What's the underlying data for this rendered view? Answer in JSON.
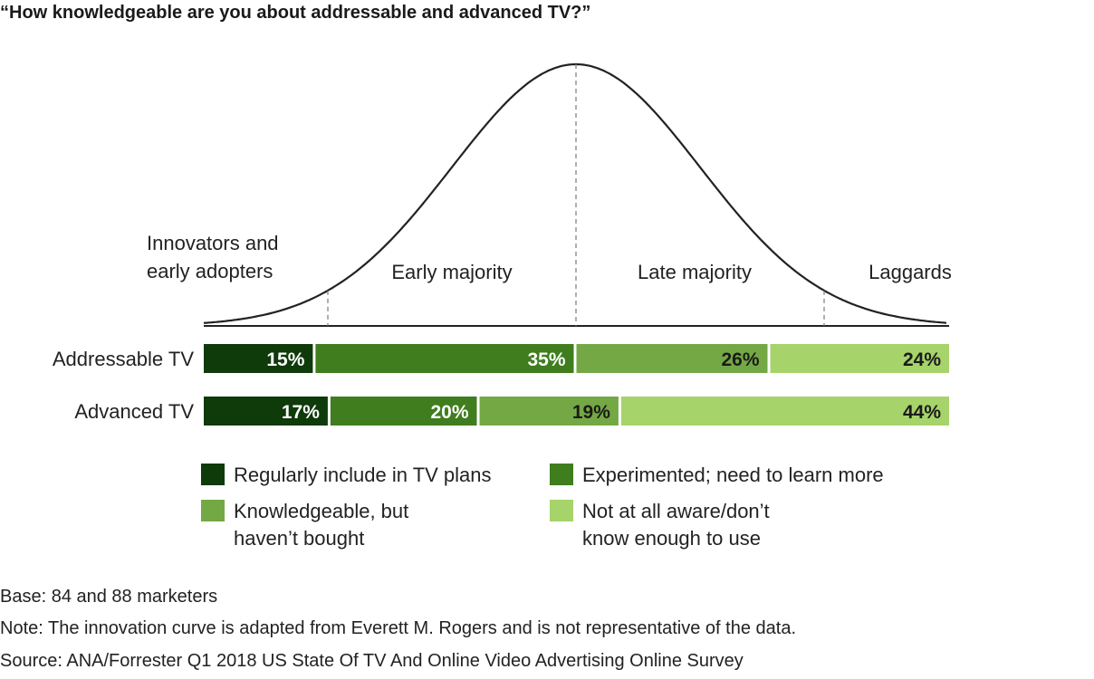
{
  "chart_data": {
    "type": "bar",
    "orientation": "horizontal",
    "stacked": true,
    "title": "“How knowledgeable are you about addressable and advanced TV?”",
    "categories": [
      "Addressable TV",
      "Advanced TV"
    ],
    "series": [
      {
        "name": "Regularly include in TV plans",
        "name_lines": [
          "Regularly include in TV plans"
        ],
        "color": "#0f3a0a",
        "label_color": "#ffffff",
        "values": [
          15,
          17
        ]
      },
      {
        "name": "Experimented; need to learn more",
        "name_lines": [
          "Experimented; need to learn more"
        ],
        "color": "#3f7d1e",
        "label_color": "#ffffff",
        "values": [
          35,
          20
        ]
      },
      {
        "name": "Knowledgeable, but haven’t bought",
        "name_lines": [
          "Knowledgeable, but",
          "haven’t bought"
        ],
        "color": "#74a844",
        "label_color": "#1a1a1a",
        "values": [
          26,
          19
        ]
      },
      {
        "name": "Not at all aware/don’t know enough to use",
        "name_lines": [
          "Not at all aware/don’t",
          "know enough to use"
        ],
        "color": "#a6d36a",
        "label_color": "#1a1a1a",
        "values": [
          24,
          44
        ]
      }
    ],
    "value_suffix": "%",
    "xlim": [
      0,
      100
    ],
    "legend_position": "bottom",
    "curve": {
      "phases": [
        {
          "lines": [
            "Innovators and",
            "early adopters"
          ]
        },
        {
          "lines": [
            "Early majority"
          ]
        },
        {
          "lines": [
            "Late majority"
          ]
        },
        {
          "lines": [
            "Laggards"
          ]
        }
      ]
    },
    "footnotes": [
      "Base: 84 and 88 marketers",
      "Note: The innovation curve is adapted from Everett M. Rogers and is not representative of the data.",
      "Source: ANA/Forrester Q1 2018 US State Of TV And Online Video Advertising Online Survey"
    ]
  }
}
